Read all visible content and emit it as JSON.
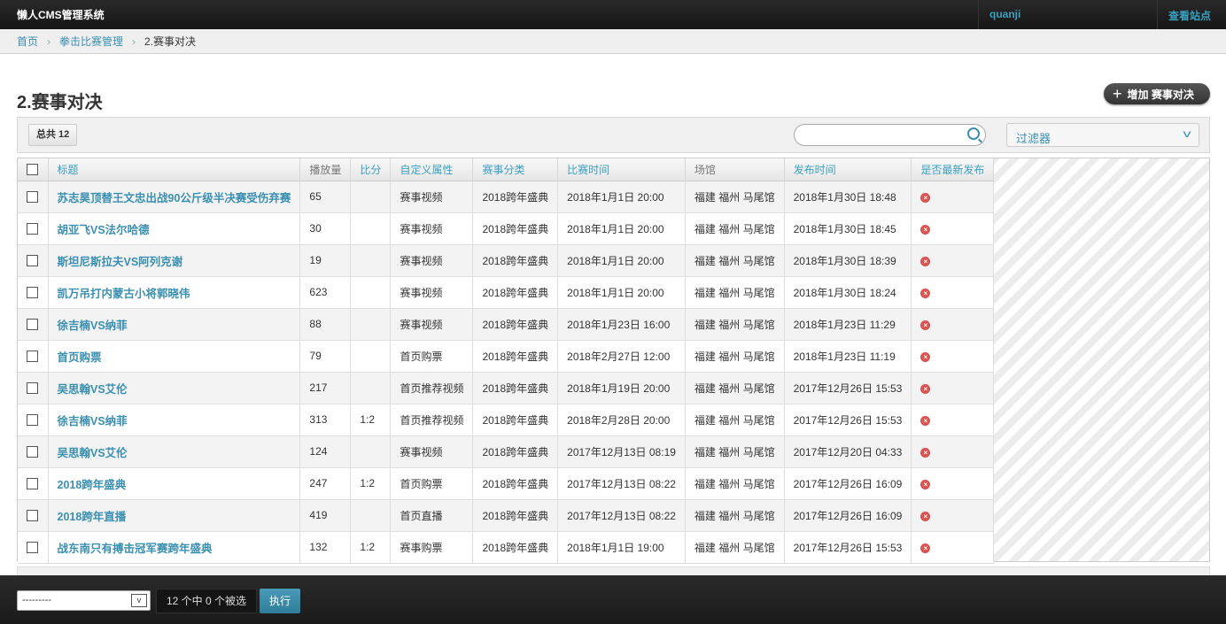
{
  "header": {
    "brand": "懒人CMS管理系统",
    "user": "quanji",
    "view_site": "查看站点"
  },
  "breadcrumb": [
    "首页",
    "拳击比赛管理",
    "2.赛事对决"
  ],
  "page": {
    "title": "2.赛事对决",
    "add_button": "增加 赛事对决"
  },
  "toolbar": {
    "total": "总共 12",
    "search_value": "",
    "filter_label": "过滤器"
  },
  "table": {
    "columns": [
      "标题",
      "播放量",
      "比分",
      "自定义属性",
      "赛事分类",
      "比赛时间",
      "场馆",
      "发布时间",
      "是否最新发布"
    ],
    "rows": [
      [
        "苏志昊顶替王文忠出战90公斤级半决赛受伤弃赛",
        "65",
        "",
        "赛事视频",
        "2018跨年盛典",
        "2018年1月1日 20:00",
        "福建 福州 马尾馆",
        "2018年1月30日 18:48"
      ],
      [
        "胡亚飞VS法尔哈德",
        "30",
        "",
        "赛事视频",
        "2018跨年盛典",
        "2018年1月1日 20:00",
        "福建 福州 马尾馆",
        "2018年1月30日 18:45"
      ],
      [
        "斯坦尼斯拉夫VS阿列克谢",
        "19",
        "",
        "赛事视频",
        "2018跨年盛典",
        "2018年1月1日 20:00",
        "福建 福州 马尾馆",
        "2018年1月30日 18:39"
      ],
      [
        "凯万吊打内蒙古小将郭晓伟",
        "623",
        "",
        "赛事视频",
        "2018跨年盛典",
        "2018年1月1日 20:00",
        "福建 福州 马尾馆",
        "2018年1月30日 18:24"
      ],
      [
        "徐吉楠VS纳菲",
        "88",
        "",
        "赛事视频",
        "2018跨年盛典",
        "2018年1月23日 16:00",
        "福建 福州 马尾馆",
        "2018年1月23日 11:29"
      ],
      [
        "首页购票",
        "79",
        "",
        "首页购票",
        "2018跨年盛典",
        "2018年2月27日 12:00",
        "福建 福州 马尾馆",
        "2018年1月23日 11:19"
      ],
      [
        "吴思翰VS艾伦",
        "217",
        "",
        "首页推荐视频",
        "2018跨年盛典",
        "2018年1月19日 20:00",
        "福建 福州 马尾馆",
        "2017年12月26日 15:53"
      ],
      [
        "徐吉楠VS纳菲",
        "313",
        "1:2",
        "首页推荐视频",
        "2018跨年盛典",
        "2018年2月28日 20:00",
        "福建 福州 马尾馆",
        "2017年12月26日 15:53"
      ],
      [
        "吴思翰VS艾伦",
        "124",
        "",
        "赛事视频",
        "2018跨年盛典",
        "2017年12月13日 08:19",
        "福建 福州 马尾馆",
        "2017年12月20日 04:33"
      ],
      [
        "2018跨年盛典",
        "247",
        "1:2",
        "首页购票",
        "2018跨年盛典",
        "2017年12月13日 08:22",
        "福建 福州 马尾馆",
        "2017年12月26日 16:09"
      ],
      [
        "2018跨年直播",
        "419",
        "",
        "首页直播",
        "2018跨年盛典",
        "2017年12月13日 08:22",
        "福建 福州 马尾馆",
        "2017年12月26日 16:09"
      ],
      [
        "战东南只有搏击冠军赛跨年盛典",
        "132",
        "1:2",
        "赛事购票",
        "2018跨年盛典",
        "2018年1月1日 19:00",
        "福建 福州 马尾馆",
        "2017年12月26日 15:53"
      ]
    ],
    "latest_icon": "x-circle-icon"
  },
  "footer": {
    "action_value": "---------",
    "selection": "12 个中 0 个被选",
    "run": "执行"
  },
  "colors": {
    "accent": "#3a8fb0",
    "topbar": "#1e1e1e",
    "no_icon": "#d9534f"
  }
}
